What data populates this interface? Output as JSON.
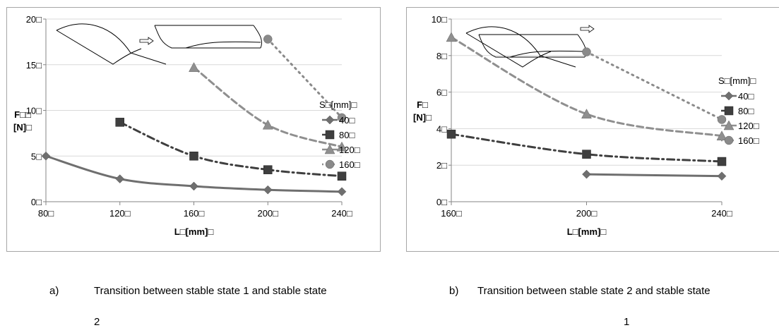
{
  "chart_data": [
    {
      "type": "line",
      "panel": "a",
      "xlabel": "L□[mm]□",
      "ylabel": [
        "F□□",
        "[N]□"
      ],
      "x_ticks": [
        "80□",
        "120□",
        "160□",
        "200□",
        "240□"
      ],
      "y_ticks": [
        "0□",
        "5□",
        "10□",
        "15□",
        "20□"
      ],
      "xlim": [
        80,
        240
      ],
      "ylim": [
        0,
        20
      ],
      "legend_title": "S□[mm]□",
      "legend_placement": "right",
      "series": [
        {
          "name": "40□",
          "marker": "diamond",
          "color": "#6f6f6f",
          "dash": "solid",
          "x": [
            80,
            120,
            160,
            200,
            240
          ],
          "y": [
            5.0,
            2.5,
            1.7,
            1.3,
            1.1
          ]
        },
        {
          "name": "80□",
          "marker": "square",
          "color": "#3f3f3f",
          "dash": "dashdot",
          "x": [
            120,
            160,
            200,
            240
          ],
          "y": [
            8.7,
            5.0,
            3.5,
            2.8
          ]
        },
        {
          "name": "120□",
          "marker": "triangle",
          "color": "#8f8f8f",
          "dash": "dashed",
          "x": [
            160,
            200,
            240
          ],
          "y": [
            14.7,
            8.4,
            6.0
          ]
        },
        {
          "name": "160□",
          "marker": "circle",
          "color": "#8a8a8a",
          "dash": "dotted",
          "x": [
            200,
            240
          ],
          "y": [
            17.8,
            9.2
          ]
        }
      ]
    },
    {
      "type": "line",
      "panel": "b",
      "xlabel": "L□[mm]□",
      "ylabel": [
        "F□",
        "[N]□"
      ],
      "x_ticks": [
        "160□",
        "200□",
        "240□"
      ],
      "y_ticks": [
        "0□",
        "2□",
        "4□",
        "6□",
        "8□",
        "10□"
      ],
      "xlim": [
        160,
        240
      ],
      "ylim": [
        0,
        10
      ],
      "legend_title": "S□[mm]□",
      "legend_placement": "right",
      "series": [
        {
          "name": "40□",
          "marker": "diamond",
          "color": "#6f6f6f",
          "dash": "solid",
          "x": [
            200,
            240
          ],
          "y": [
            1.5,
            1.4
          ]
        },
        {
          "name": "80□",
          "marker": "square",
          "color": "#3f3f3f",
          "dash": "dashdot",
          "x": [
            160,
            200,
            240
          ],
          "y": [
            3.7,
            2.6,
            2.2
          ]
        },
        {
          "name": "120□",
          "marker": "triangle",
          "color": "#8f8f8f",
          "dash": "dashed",
          "x": [
            160,
            200,
            240
          ],
          "y": [
            9.0,
            4.8,
            3.6
          ]
        },
        {
          "name": "160□",
          "marker": "circle",
          "color": "#8a8a8a",
          "dash": "dotted",
          "x": [
            200,
            240
          ],
          "y": [
            8.2,
            4.5
          ]
        }
      ]
    }
  ],
  "captions": [
    {
      "letter": "a)",
      "text": "Transition between stable state 1 and stable state",
      "cont": "2"
    },
    {
      "letter": "b)",
      "text": "Transition between stable state 2 and stable state",
      "cont": "1"
    }
  ]
}
